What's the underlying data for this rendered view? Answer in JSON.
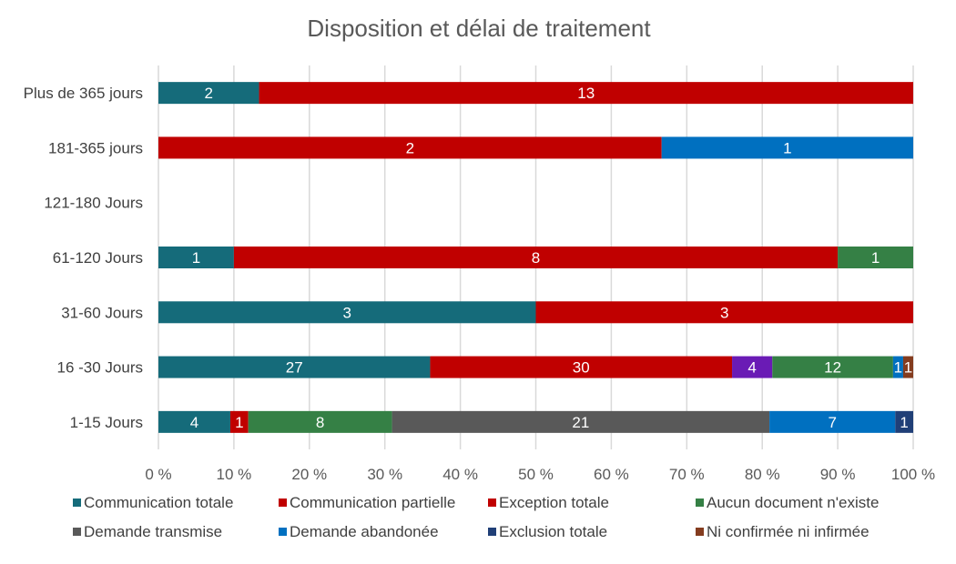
{
  "chart_data": {
    "type": "bar",
    "orientation": "horizontal",
    "stacking": "percent",
    "title": "Disposition et délai de traitement",
    "categories": [
      "1-15 Jours",
      "16 -30 Jours",
      "31-60 Jours",
      "61-120 Jours",
      "121-180 Jours",
      "181-365 jours",
      "Plus de 365 jours"
    ],
    "xlim": [
      0,
      100
    ],
    "xticks": [
      "0 %",
      "10 %",
      "20 %",
      "30 %",
      "40 %",
      "50 %",
      "60 %",
      "70 %",
      "80 %",
      "90 %",
      "100 %"
    ],
    "grid": true,
    "legend_position": "bottom",
    "series": [
      {
        "name": "Communication totale",
        "color": "#156b7a",
        "values": [
          4,
          27,
          3,
          1,
          0,
          0,
          2
        ]
      },
      {
        "name": "Communication partielle",
        "color": "#c00000",
        "values": [
          1,
          30,
          3,
          8,
          0,
          2,
          13
        ]
      },
      {
        "name": "Exception totale",
        "color": "#c00000",
        "values": [
          0,
          4,
          0,
          0,
          0,
          0,
          0
        ],
        "point_colors": {
          "1": "#6a1bb5"
        }
      },
      {
        "name": "Aucun document n'existe",
        "color": "#358045",
        "values": [
          8,
          12,
          0,
          1,
          0,
          0,
          0
        ]
      },
      {
        "name": "Demande transmise",
        "color": "#595959",
        "values": [
          21,
          0,
          0,
          0,
          0,
          0,
          0
        ]
      },
      {
        "name": "Demande abandonée",
        "color": "#0070c0",
        "values": [
          7,
          1,
          0,
          0,
          0,
          1,
          0
        ]
      },
      {
        "name": "Exclusion totale",
        "color": "#203f77",
        "values": [
          1,
          0,
          0,
          0,
          0,
          0,
          0
        ]
      },
      {
        "name": "Ni confirmée ni infirmée",
        "color": "#843c1f",
        "values": [
          0,
          1,
          0,
          0,
          0,
          0,
          0
        ]
      }
    ]
  }
}
